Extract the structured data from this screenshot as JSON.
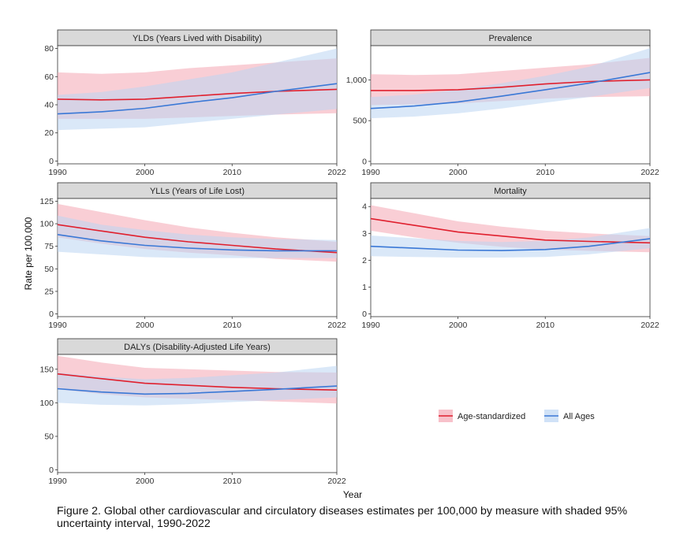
{
  "chart_data": {
    "type": "line",
    "ylabel": "Rate per 100,000",
    "xlabel": "Year",
    "legend": {
      "placement": "bottom-right",
      "entries": [
        {
          "name": "Age-standardized",
          "line_color": "#e0202e",
          "band_color": "#f4a6b3"
        },
        {
          "name": "All Ages",
          "line_color": "#3a78d6",
          "band_color": "#bcd6f3"
        }
      ]
    },
    "caption": "Figure 2. Global other cardiovascular and circulatory diseases estimates per 100,000 by measure with shaded 95% uncertainty interval, 1990-2022",
    "panels": [
      {
        "title": "YLDs (Years Lived with Disability)",
        "xlim": [
          1990,
          2022
        ],
        "ylim": [
          -2,
          82
        ],
        "xticks": [
          1990,
          2000,
          2010,
          2022
        ],
        "yticks": [
          0,
          20,
          40,
          60,
          80
        ],
        "ytick_labels": [
          "0",
          "20",
          "40",
          "60",
          "80"
        ],
        "series": [
          {
            "name": "Age-standardized",
            "x": [
              1990,
              1995,
              2000,
              2005,
              2010,
              2015,
              2022
            ],
            "y": [
              44,
              43.5,
              44,
              46,
              48,
              49.5,
              51
            ],
            "lower": [
              30,
              30,
              30,
              31,
              32,
              33,
              34
            ],
            "upper": [
              63,
              62,
              63,
              66,
              68,
              70,
              73
            ]
          },
          {
            "name": "All Ages",
            "x": [
              1990,
              1995,
              2000,
              2005,
              2010,
              2015,
              2022
            ],
            "y": [
              33.5,
              35,
              37.5,
              41.5,
              45,
              49.5,
              55
            ],
            "lower": [
              22,
              23,
              24,
              27,
              30,
              33,
              37
            ],
            "upper": [
              47,
              49,
              53,
              58,
              63,
              70,
              80
            ]
          }
        ]
      },
      {
        "title": "Prevalence",
        "xlim": [
          1990,
          2022
        ],
        "ylim": [
          -30,
          1420
        ],
        "xticks": [
          1990,
          2000,
          2010,
          2022
        ],
        "yticks": [
          0,
          500,
          1000
        ],
        "ytick_labels": [
          "0",
          "500",
          "1,000"
        ],
        "series": [
          {
            "name": "Age-standardized",
            "x": [
              1990,
              1995,
              2000,
              2005,
              2010,
              2015,
              2022
            ],
            "y": [
              870,
              870,
              880,
              910,
              950,
              980,
              1000
            ],
            "lower": [
              690,
              700,
              710,
              740,
              770,
              790,
              800
            ],
            "upper": [
              1070,
              1060,
              1070,
              1110,
              1150,
              1190,
              1270
            ]
          },
          {
            "name": "All Ages",
            "x": [
              1990,
              1995,
              2000,
              2005,
              2010,
              2015,
              2022
            ],
            "y": [
              650,
              680,
              730,
              800,
              880,
              960,
              1090
            ],
            "lower": [
              530,
              550,
              590,
              650,
              720,
              790,
              900
            ],
            "upper": [
              790,
              820,
              880,
              960,
              1050,
              1160,
              1390
            ]
          }
        ]
      },
      {
        "title": "YLLs (Years of Life Lost)",
        "xlim": [
          1990,
          2022
        ],
        "ylim": [
          -3,
          128
        ],
        "xticks": [
          1990,
          2000,
          2010,
          2022
        ],
        "yticks": [
          0,
          25,
          50,
          75,
          100,
          125
        ],
        "ytick_labels": [
          "0",
          "25",
          "50",
          "75",
          "100",
          "125"
        ],
        "series": [
          {
            "name": "Age-standardized",
            "x": [
              1990,
              1995,
              2000,
              2005,
              2010,
              2015,
              2022
            ],
            "y": [
              99,
              92,
              85,
              80,
              76,
              72,
              68
            ],
            "lower": [
              85,
              78,
              72,
              68,
              65,
              61,
              58
            ],
            "upper": [
              122,
              113,
              104,
              96,
              90,
              85,
              80
            ]
          },
          {
            "name": "All Ages",
            "x": [
              1990,
              1995,
              2000,
              2005,
              2010,
              2015,
              2022
            ],
            "y": [
              88,
              81,
              76,
              73,
              71,
              70,
              70
            ],
            "lower": [
              69,
              66,
              63,
              62,
              62,
              62,
              62
            ],
            "upper": [
              109,
              99,
              93,
              88,
              85,
              83,
              82
            ]
          }
        ]
      },
      {
        "title": "Mortality",
        "xlim": [
          1990,
          2022
        ],
        "ylim": [
          -0.1,
          4.3
        ],
        "xticks": [
          1990,
          2000,
          2010,
          2022
        ],
        "yticks": [
          0,
          1,
          2,
          3,
          4
        ],
        "ytick_labels": [
          "0",
          "1",
          "2",
          "3",
          "4"
        ],
        "series": [
          {
            "name": "Age-standardized",
            "x": [
              1990,
              1995,
              2000,
              2005,
              2010,
              2015,
              2022
            ],
            "y": [
              3.55,
              3.3,
              3.05,
              2.9,
              2.75,
              2.7,
              2.65
            ],
            "lower": [
              3.1,
              2.85,
              2.65,
              2.5,
              2.4,
              2.35,
              2.3
            ],
            "upper": [
              4.05,
              3.75,
              3.45,
              3.25,
              3.1,
              3.0,
              2.9
            ]
          },
          {
            "name": "All Ages",
            "x": [
              1990,
              1995,
              2000,
              2005,
              2010,
              2015,
              2022
            ],
            "y": [
              2.52,
              2.45,
              2.38,
              2.36,
              2.4,
              2.52,
              2.8
            ],
            "lower": [
              2.15,
              2.12,
              2.1,
              2.1,
              2.12,
              2.22,
              2.45
            ],
            "upper": [
              2.92,
              2.82,
              2.72,
              2.68,
              2.72,
              2.85,
              3.2
            ]
          }
        ]
      },
      {
        "title": "DALYs (Disability-Adjusted Life Years)",
        "xlim": [
          1990,
          2022
        ],
        "ylim": [
          -4,
          172
        ],
        "xticks": [
          1990,
          2000,
          2010,
          2022
        ],
        "yticks": [
          0,
          50,
          100,
          150
        ],
        "ytick_labels": [
          "0",
          "50",
          "100",
          "150"
        ],
        "series": [
          {
            "name": "Age-standardized",
            "x": [
              1990,
              1995,
              2000,
              2005,
              2010,
              2015,
              2022
            ],
            "y": [
              143,
              136,
              129,
              126,
              123,
              121,
              119
            ],
            "lower": [
              120,
              113,
              108,
              106,
              104,
              102,
              99
            ],
            "upper": [
              170,
              160,
              152,
              150,
              148,
              146,
              145
            ]
          },
          {
            "name": "All Ages",
            "x": [
              1990,
              1995,
              2000,
              2005,
              2010,
              2015,
              2022
            ],
            "y": [
              121,
              116,
              113,
              114,
              117,
              120,
              125
            ],
            "lower": [
              100,
              97,
              96,
              98,
              101,
              104,
              108
            ],
            "upper": [
              145,
              139,
              135,
              137,
              141,
              145,
              155
            ]
          }
        ]
      }
    ]
  }
}
